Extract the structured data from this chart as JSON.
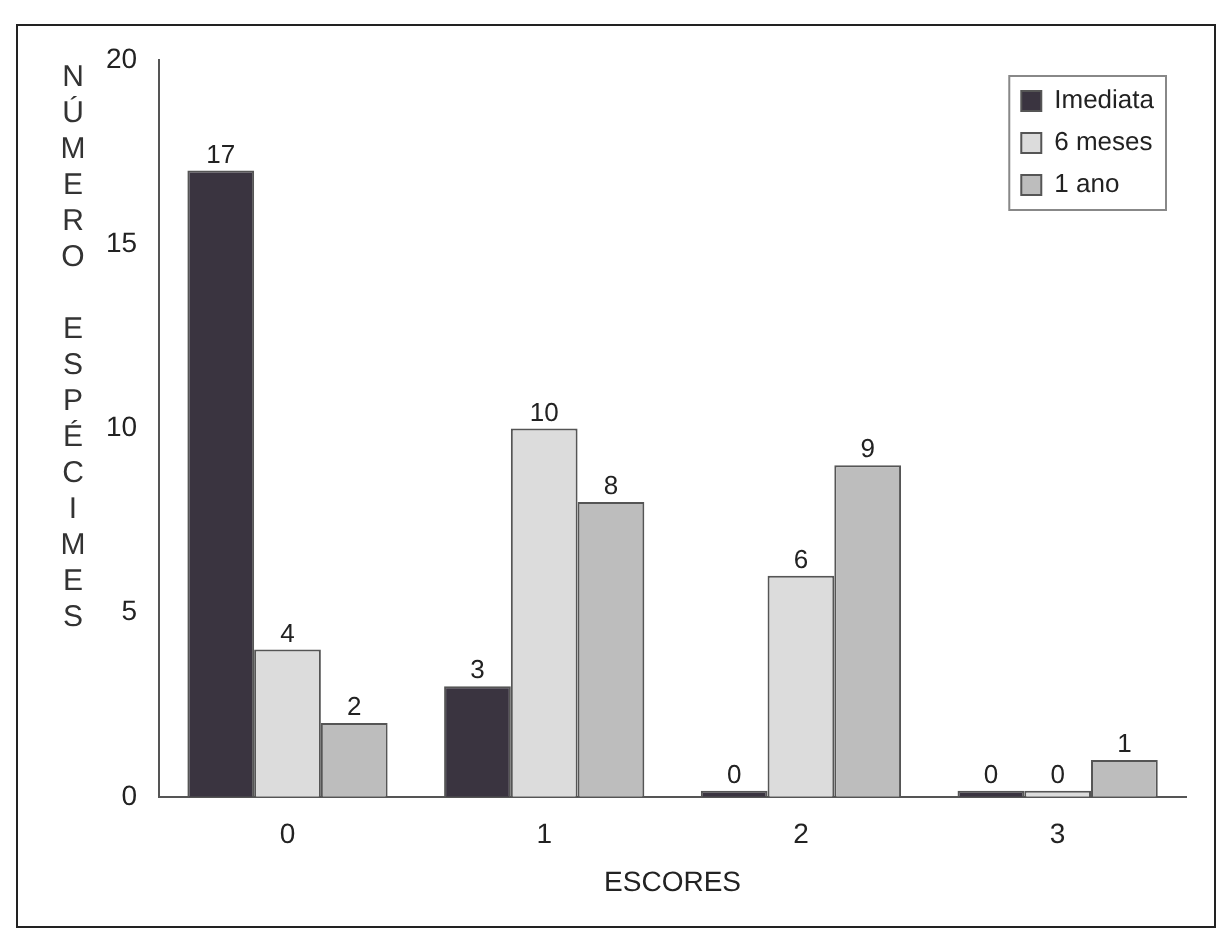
{
  "chart_data": {
    "type": "bar",
    "xlabel": "ESCORES",
    "ylabel": "NÚMERO ESPÉCIMES",
    "categories": [
      "0",
      "1",
      "2",
      "3"
    ],
    "series": [
      {
        "name": "Imediata",
        "color": "#3a3440",
        "values": [
          17,
          3,
          0,
          0
        ]
      },
      {
        "name": "6 meses",
        "color": "#dcdcdc",
        "values": [
          4,
          10,
          6,
          0
        ]
      },
      {
        "name": "1 ano",
        "color": "#bdbdbd",
        "values": [
          2,
          8,
          9,
          1
        ]
      }
    ],
    "ylim": [
      0,
      20
    ],
    "yticks": [
      0,
      5,
      10,
      15,
      20
    ],
    "grid": false,
    "legend": "top right",
    "data_labels": true
  }
}
